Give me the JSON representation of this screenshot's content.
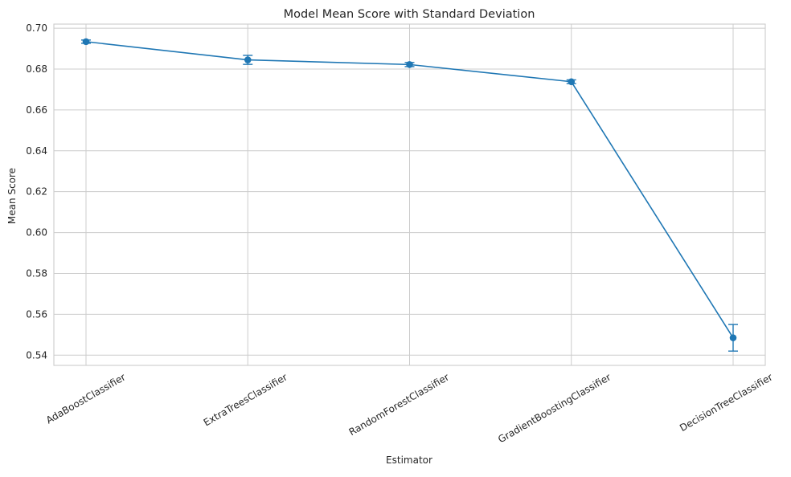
{
  "chart_data": {
    "type": "line",
    "title": "Model Mean Score with Standard Deviation",
    "xlabel": "Estimator",
    "ylabel": "Mean Score",
    "categories": [
      "AdaBoostClassifier",
      "ExtraTreesClassifier",
      "RandomForestClassifier",
      "GradientBoostingClassifier",
      "DecisionTreeClassifier"
    ],
    "series": [
      {
        "values": [
          0.6934,
          0.6845,
          0.6822,
          0.6738,
          0.5485
        ],
        "error": [
          0.0008,
          0.0022,
          0.001,
          0.0009,
          0.0065
        ]
      }
    ],
    "ylim": [
      0.535,
      0.702
    ],
    "yticks": [
      0.54,
      0.56,
      0.58,
      0.6,
      0.62,
      0.64,
      0.66,
      0.68,
      0.7
    ],
    "ytick_labels": [
      "0.54",
      "0.56",
      "0.58",
      "0.60",
      "0.62",
      "0.64",
      "0.66",
      "0.68",
      "0.70"
    ],
    "grid": true,
    "x_tick_rotation_deg": 30,
    "colors": {
      "series": "#1f77b4",
      "grid": "#cccccc",
      "text": "#262626"
    }
  }
}
